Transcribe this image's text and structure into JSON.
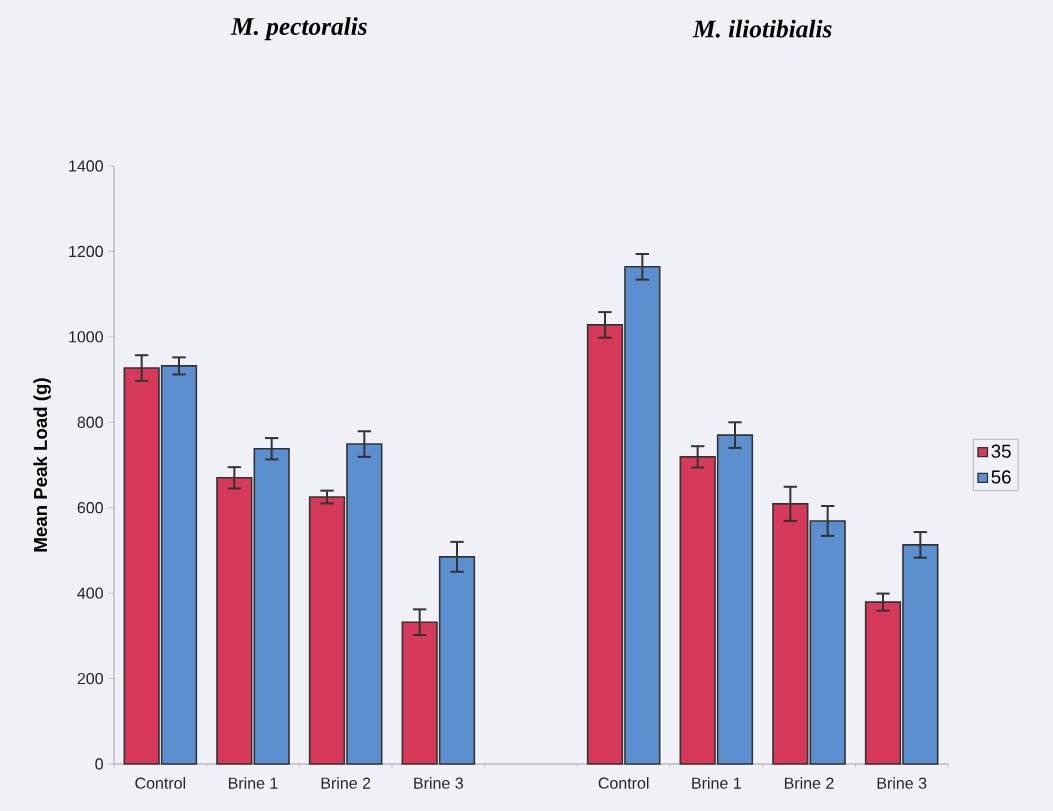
{
  "chart_data": {
    "type": "bar",
    "ylabel": "Mean Peak Load (g)",
    "annotations": [
      "M. pectoralis",
      "M. iliotibialis"
    ],
    "categories": [
      "Control",
      "Brine 1",
      "Brine 2",
      "Brine 3",
      null,
      "Control",
      "Brine 1",
      "Brine 2",
      "Brine 3"
    ],
    "series": [
      {
        "name": "35",
        "color": "#d6395a",
        "values": [
          927,
          670,
          625,
          332,
          null,
          1028,
          719,
          609,
          379
        ],
        "errors": [
          30,
          25,
          15,
          30,
          null,
          30,
          25,
          40,
          20
        ]
      },
      {
        "name": "56",
        "color": "#5b8fd0",
        "values": [
          932,
          738,
          749,
          485,
          null,
          1164,
          770,
          569,
          513
        ],
        "errors": [
          20,
          25,
          30,
          35,
          null,
          30,
          30,
          35,
          30
        ]
      }
    ],
    "ylim": [
      0,
      1400
    ],
    "yticks": [
      0,
      200,
      400,
      600,
      800,
      1000,
      1200,
      1400
    ],
    "legend": "right",
    "grid": false
  }
}
